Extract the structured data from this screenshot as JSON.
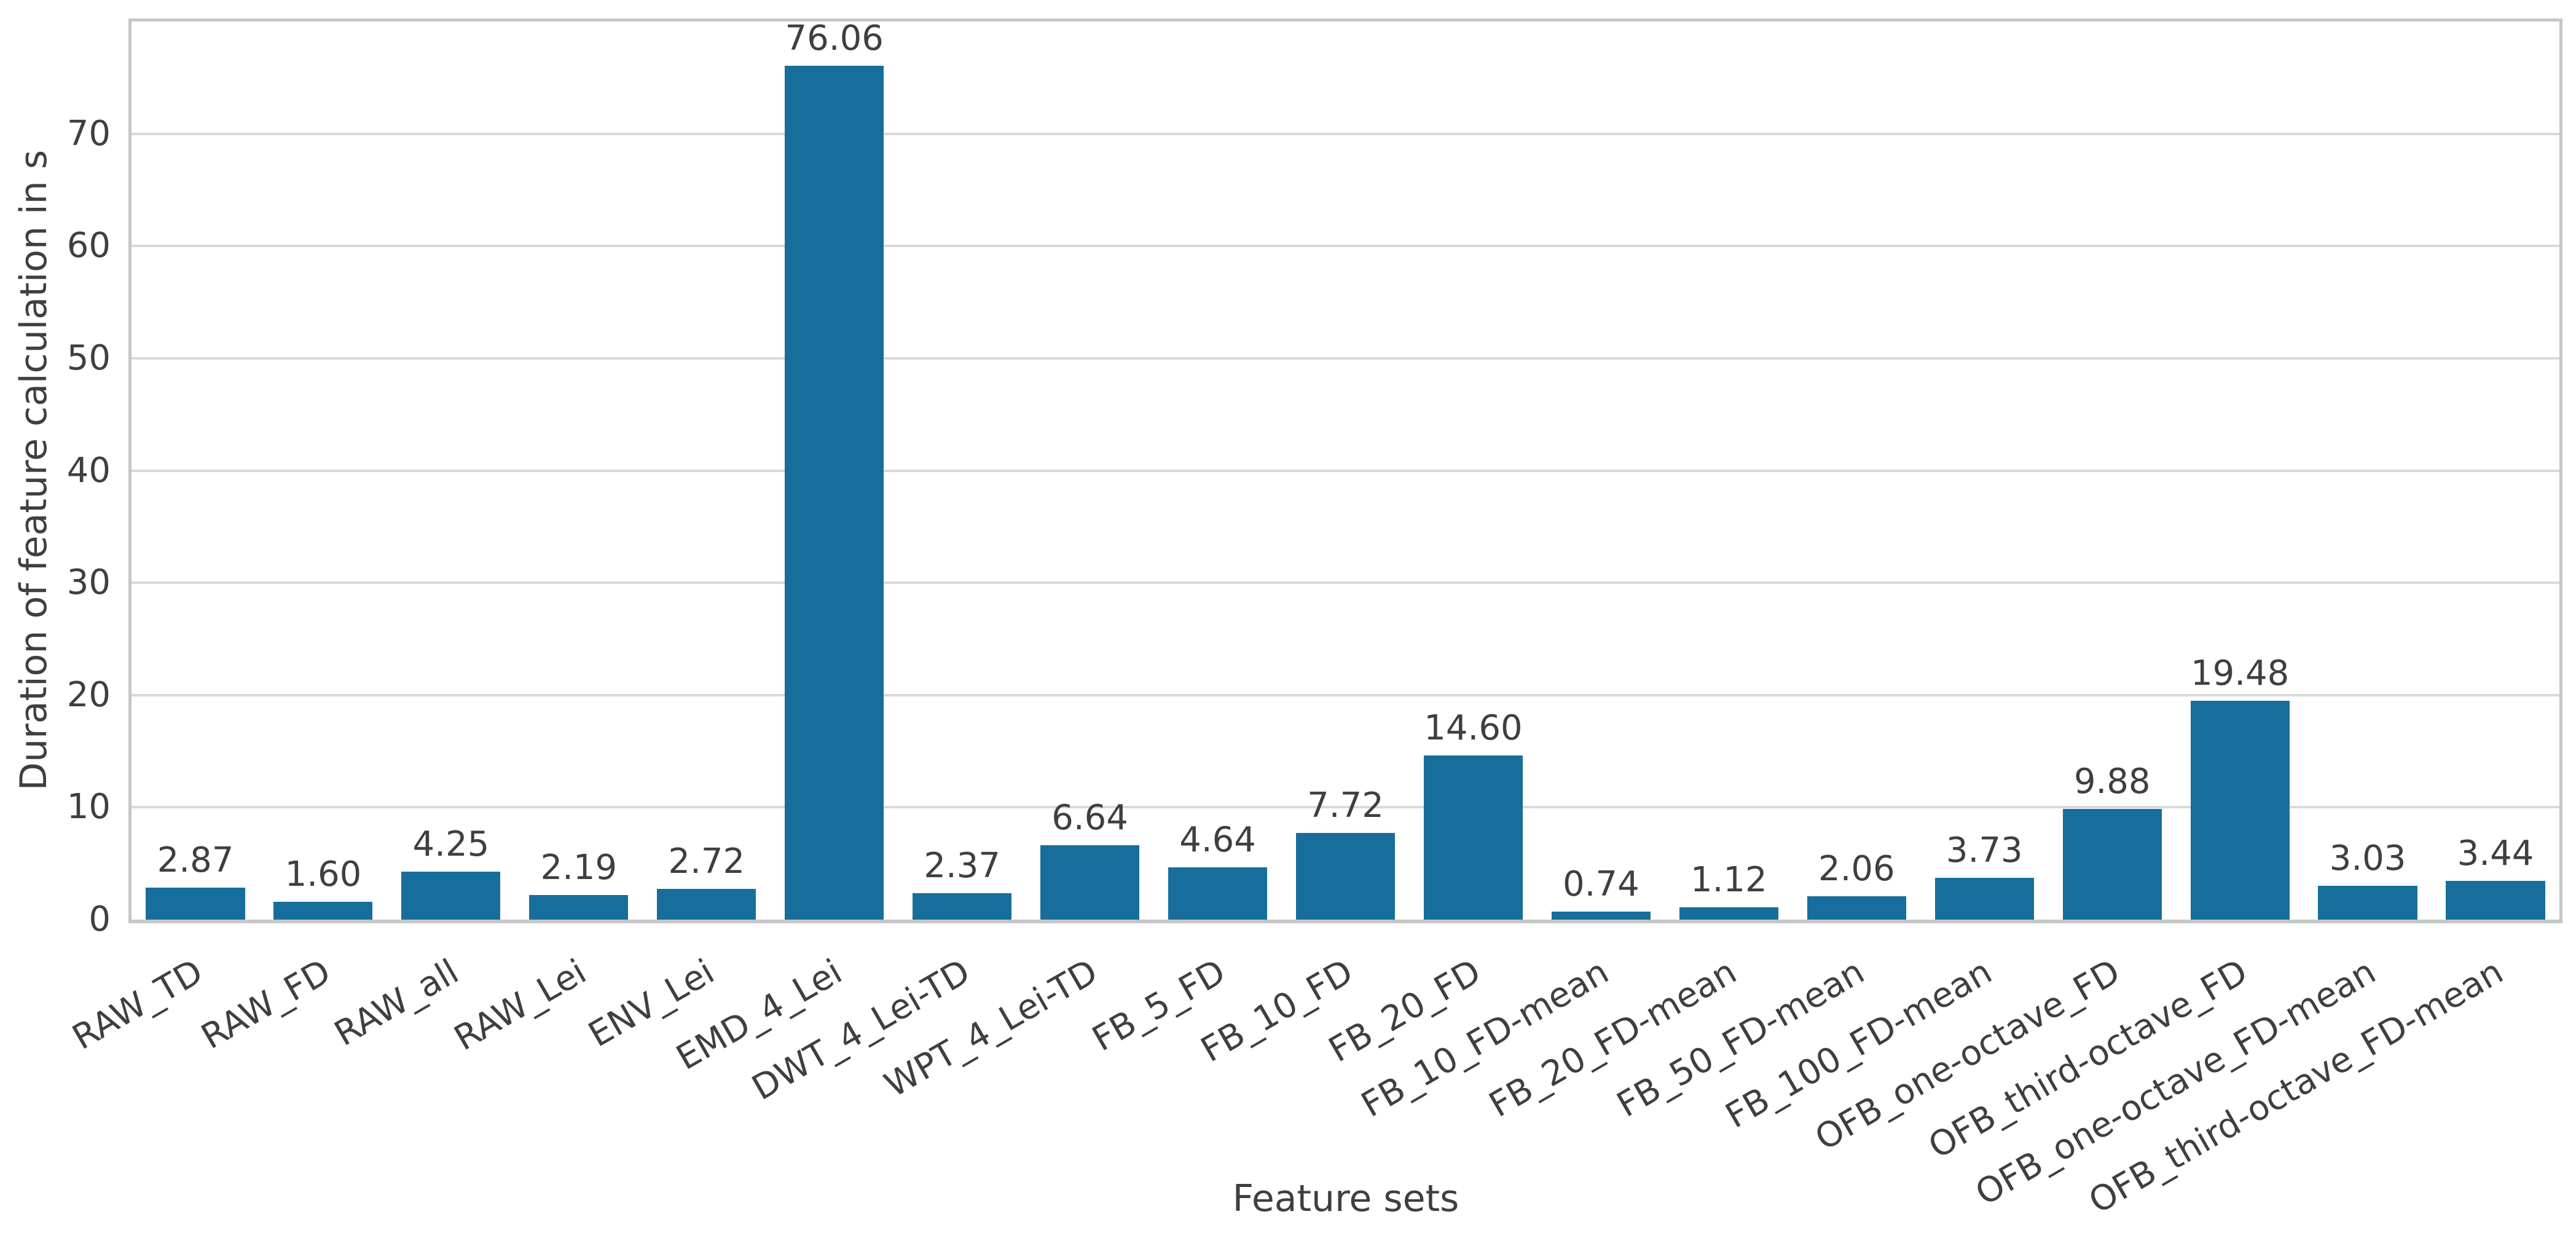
{
  "chart_data": {
    "type": "bar",
    "title": "",
    "xlabel": "Feature sets",
    "ylabel": "Duration of feature calculation in s",
    "categories": [
      "RAW_TD",
      "RAW_FD",
      "RAW_all",
      "RAW_Lei",
      "ENV_Lei",
      "EMD_4_Lei",
      "DWT_4_Lei-TD",
      "WPT_4_Lei-TD",
      "FB_5_FD",
      "FB_10_FD",
      "FB_20_FD",
      "FB_10_FD-mean",
      "FB_20_FD-mean",
      "FB_50_FD-mean",
      "FB_100_FD-mean",
      "OFB_one-octave_FD",
      "OFB_third-octave_FD",
      "OFB_one-octave_FD-mean",
      "OFB_third-octave_FD-mean"
    ],
    "values": [
      2.87,
      1.6,
      4.25,
      2.19,
      2.72,
      76.06,
      2.37,
      6.64,
      4.64,
      7.72,
      14.6,
      0.74,
      1.12,
      2.06,
      3.73,
      9.88,
      19.48,
      3.03,
      3.44
    ],
    "value_labels": [
      "2.87",
      "1.60",
      "4.25",
      "2.19",
      "2.72",
      "76.06",
      "2.37",
      "6.64",
      "4.64",
      "7.72",
      "14.60",
      "0.74",
      "1.12",
      "2.06",
      "3.73",
      "9.88",
      "19.48",
      "3.03",
      "3.44"
    ],
    "yticks": [
      0,
      10,
      20,
      30,
      40,
      50,
      60,
      70
    ],
    "ylim": [
      0,
      80
    ],
    "grid": true,
    "legend_position": "none",
    "bar_color": "#176e9c",
    "grid_color": "#d9d9d9",
    "spine_color": "#c7c7c7",
    "text_color": "#3f3f3f",
    "background_color": "#ffffff"
  }
}
